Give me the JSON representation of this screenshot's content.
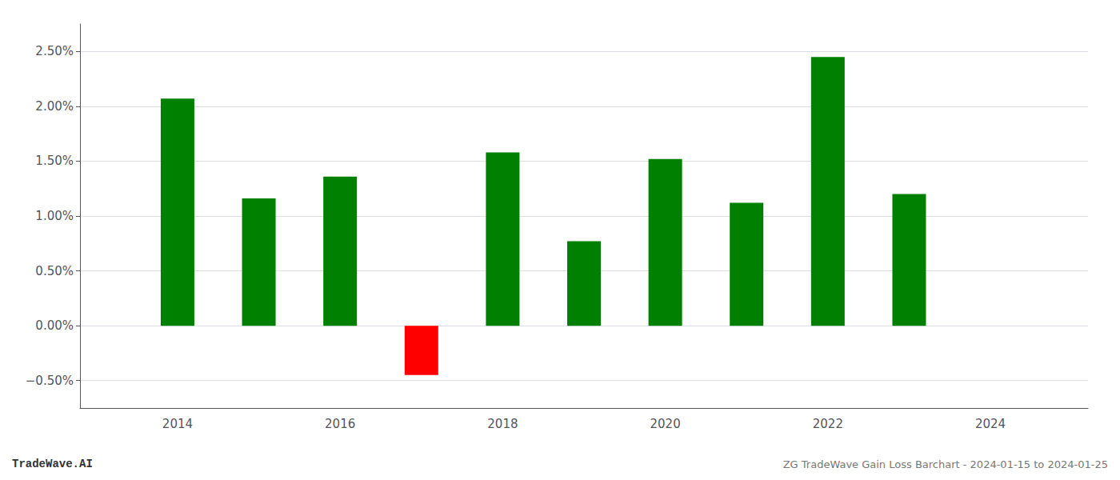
{
  "chart_data": {
    "type": "bar",
    "title": "ZG TradeWave Gain Loss Barchart - 2024-01-15 to 2024-01-25",
    "annotations": [
      "TradeWave.AI"
    ],
    "x": [
      2014,
      2015,
      2016,
      2017,
      2018,
      2019,
      2020,
      2021,
      2022,
      2023
    ],
    "values": [
      2.07,
      1.16,
      1.36,
      -0.45,
      1.58,
      0.77,
      1.52,
      1.12,
      2.45,
      1.2
    ],
    "colors": [
      "#008000",
      "#008000",
      "#008000",
      "#ff0000",
      "#008000",
      "#008000",
      "#008000",
      "#008000",
      "#008000",
      "#008000"
    ],
    "xlim": [
      2012.8,
      2025.2
    ],
    "xticks": [
      2014,
      2016,
      2018,
      2020,
      2022,
      2024
    ],
    "ylim": [
      -0.75,
      2.75
    ],
    "yticks": [
      {
        "value": -0.5,
        "label": "−0.50%"
      },
      {
        "value": 0.0,
        "label": "0.00%"
      },
      {
        "value": 0.5,
        "label": "0.50%"
      },
      {
        "value": 1.0,
        "label": "1.00%"
      },
      {
        "value": 1.5,
        "label": "1.50%"
      },
      {
        "value": 2.0,
        "label": "2.00%"
      },
      {
        "value": 2.5,
        "label": "2.50%"
      }
    ],
    "grid": true
  }
}
